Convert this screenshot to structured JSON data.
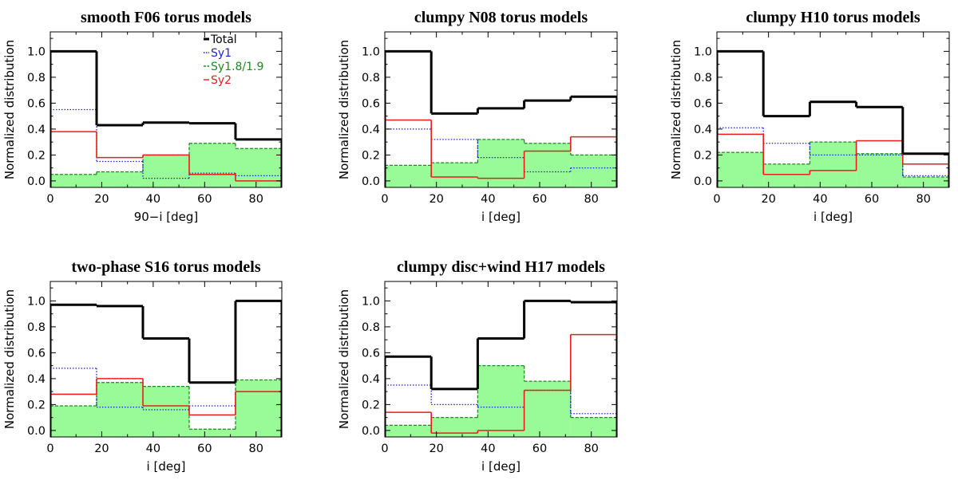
{
  "figure": {
    "ylabel": "Normalized distribution",
    "legend_position": "top-right of first panel",
    "colors": {
      "total": "#000000",
      "sy1": "#1f1fd6",
      "sy18": "#1e8a1e",
      "sy2": "#ee1b1b",
      "fill": "#98fb98"
    }
  },
  "legend": [
    {
      "key": "total",
      "label": "Total"
    },
    {
      "key": "sy1",
      "label": "Sy1"
    },
    {
      "key": "sy18",
      "label": "Sy1.8/1.9"
    },
    {
      "key": "sy2",
      "label": "Sy2"
    }
  ],
  "chart_data": [
    {
      "type": "histogram",
      "title": "smooth F06 torus models",
      "xlabel": "90−i [deg]",
      "ylabel": "Normalized distribution",
      "xlim": [
        0,
        90
      ],
      "ylim": [
        -0.05,
        1.15
      ],
      "xticks": [
        0,
        20,
        40,
        60,
        80
      ],
      "yticks": [
        "0.0",
        "0.2",
        "0.4",
        "0.6",
        "0.8",
        "1.0"
      ],
      "bin_edges": [
        0,
        18,
        36,
        54,
        72,
        90
      ],
      "series": [
        {
          "name": "Total",
          "values": [
            1.0,
            0.43,
            0.45,
            0.445,
            0.32
          ]
        },
        {
          "name": "Sy1",
          "values": [
            0.55,
            0.15,
            0.02,
            0.06,
            0.04
          ]
        },
        {
          "name": "Sy1.8/1.9",
          "values": [
            0.05,
            0.07,
            0.2,
            0.29,
            0.25
          ]
        },
        {
          "name": "Sy2",
          "values": [
            0.38,
            0.18,
            0.2,
            0.05,
            0.0
          ]
        }
      ]
    },
    {
      "type": "histogram",
      "title": "clumpy N08 torus models",
      "xlabel": "i [deg]",
      "ylabel": "Normalized distribution",
      "xlim": [
        0,
        90
      ],
      "ylim": [
        -0.05,
        1.15
      ],
      "xticks": [
        0,
        20,
        40,
        60,
        80
      ],
      "yticks": [
        "0.0",
        "0.2",
        "0.4",
        "0.6",
        "0.8",
        "1.0"
      ],
      "bin_edges": [
        0,
        18,
        36,
        54,
        72,
        90
      ],
      "series": [
        {
          "name": "Total",
          "values": [
            1.0,
            0.52,
            0.56,
            0.62,
            0.65
          ]
        },
        {
          "name": "Sy1",
          "values": [
            0.4,
            0.32,
            0.18,
            0.07,
            0.1
          ]
        },
        {
          "name": "Sy1.8/1.9",
          "values": [
            0.12,
            0.14,
            0.32,
            0.29,
            0.2
          ]
        },
        {
          "name": "Sy2",
          "values": [
            0.47,
            0.03,
            0.02,
            0.23,
            0.34
          ]
        }
      ]
    },
    {
      "type": "histogram",
      "title": "clumpy H10 torus models",
      "xlabel": "i [deg]",
      "ylabel": "Normalized distribution",
      "xlim": [
        0,
        90
      ],
      "ylim": [
        -0.05,
        1.15
      ],
      "xticks": [
        0,
        20,
        40,
        60,
        80
      ],
      "yticks": [
        "0.0",
        "0.2",
        "0.4",
        "0.6",
        "0.8",
        "1.0"
      ],
      "bin_edges": [
        0,
        18,
        36,
        54,
        72,
        90
      ],
      "series": [
        {
          "name": "Total",
          "values": [
            1.0,
            0.5,
            0.61,
            0.57,
            0.21
          ]
        },
        {
          "name": "Sy1",
          "values": [
            0.41,
            0.29,
            0.2,
            0.2,
            0.04
          ]
        },
        {
          "name": "Sy1.8/1.9",
          "values": [
            0.22,
            0.13,
            0.3,
            0.21,
            0.03
          ]
        },
        {
          "name": "Sy2",
          "values": [
            0.36,
            0.05,
            0.08,
            0.31,
            0.13
          ]
        }
      ]
    },
    {
      "type": "histogram",
      "title": "two-phase S16 torus models",
      "xlabel": "i [deg]",
      "ylabel": "Normalized distribution",
      "xlim": [
        0,
        90
      ],
      "ylim": [
        -0.05,
        1.15
      ],
      "xticks": [
        0,
        20,
        40,
        60,
        80
      ],
      "yticks": [
        "0.0",
        "0.2",
        "0.4",
        "0.6",
        "0.8",
        "1.0"
      ],
      "bin_edges": [
        0,
        18,
        36,
        54,
        72,
        90
      ],
      "series": [
        {
          "name": "Total",
          "values": [
            0.97,
            0.96,
            0.71,
            0.37,
            1.0
          ]
        },
        {
          "name": "Sy1",
          "values": [
            0.48,
            0.18,
            0.16,
            0.19,
            0.3
          ]
        },
        {
          "name": "Sy1.8/1.9",
          "values": [
            0.19,
            0.37,
            0.34,
            0.01,
            0.39
          ]
        },
        {
          "name": "Sy2",
          "values": [
            0.28,
            0.4,
            0.19,
            0.12,
            0.3
          ]
        }
      ]
    },
    {
      "type": "histogram",
      "title": "clumpy disc+wind H17 models",
      "xlabel": "i [deg]",
      "ylabel": "Normalized distribution",
      "xlim": [
        0,
        90
      ],
      "ylim": [
        -0.05,
        1.15
      ],
      "xticks": [
        0,
        20,
        40,
        60,
        80
      ],
      "yticks": [
        "0.0",
        "0.2",
        "0.4",
        "0.6",
        "0.8",
        "1.0"
      ],
      "bin_edges": [
        0,
        18,
        36,
        54,
        72,
        90
      ],
      "series": [
        {
          "name": "Total",
          "values": [
            0.57,
            0.32,
            0.71,
            1.0,
            0.99
          ]
        },
        {
          "name": "Sy1",
          "values": [
            0.35,
            0.2,
            0.18,
            0.31,
            0.13
          ]
        },
        {
          "name": "Sy1.8/1.9",
          "values": [
            0.04,
            0.1,
            0.5,
            0.38,
            0.1
          ]
        },
        {
          "name": "Sy2",
          "values": [
            0.14,
            -0.02,
            0.0,
            0.31,
            0.74
          ]
        }
      ]
    }
  ]
}
